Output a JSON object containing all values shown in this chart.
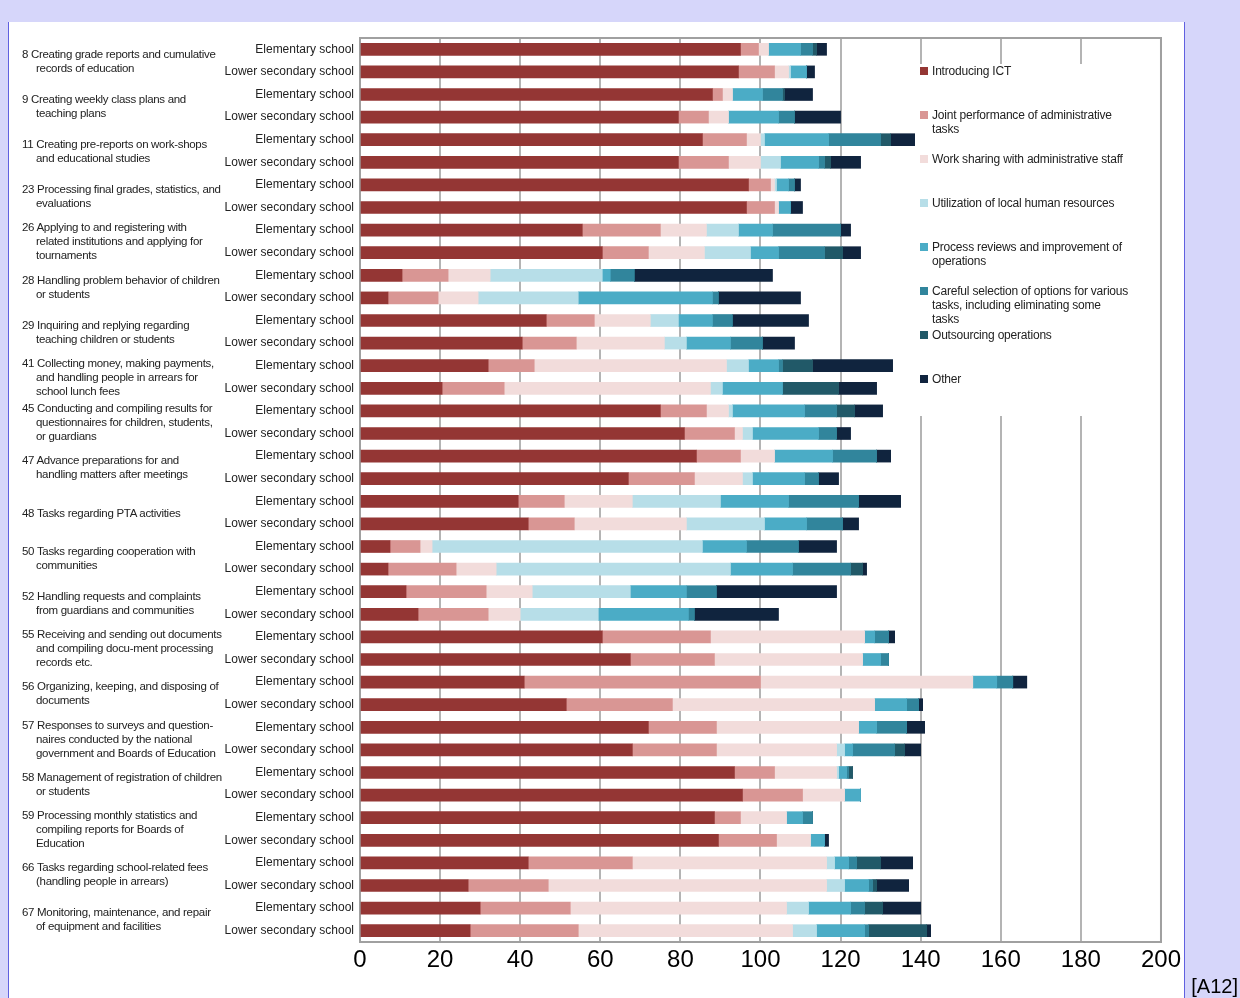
{
  "chart_data": {
    "type": "bar",
    "orientation": "horizontal",
    "stacked": true,
    "grid": "x",
    "legend": "right",
    "categories": [
      "Elementary school",
      "Lower secondary school",
      "Elementary school",
      "Lower secondary school",
      "Elementary school",
      "Lower secondary school",
      "Elementary school",
      "Lower secondary school",
      "Elementary school",
      "Lower secondary school",
      "Elementary school",
      "Lower secondary school",
      "Elementary school",
      "Lower secondary school",
      "Elementary school",
      "Lower secondary school",
      "Elementary school",
      "Lower secondary school",
      "Elementary school",
      "Lower secondary school",
      "Elementary school",
      "Lower secondary school",
      "Elementary school",
      "Lower secondary school",
      "Elementary school",
      "Lower secondary school",
      "Elementary school",
      "Lower secondary school",
      "Elementary school",
      "Lower secondary school",
      "Elementary school",
      "Lower secondary school",
      "Elementary school",
      "Lower secondary school",
      "Elementary school",
      "Lower secondary school",
      "Elementary school",
      "Lower secondary school",
      "Elementary school",
      "Lower secondary school"
    ],
    "xlim": [
      0,
      200
    ],
    "xticks": [
      0,
      20,
      40,
      60,
      80,
      100,
      120,
      140,
      160,
      180,
      200
    ],
    "series": [
      {
        "name": "Introducing ICT",
        "color": "#943634",
        "values": [
          95,
          94.5,
          88,
          79.5,
          85.5,
          79.5,
          97,
          96.5,
          55.5,
          60.5,
          10.5,
          7,
          46.5,
          40.5,
          32,
          20.5,
          75,
          81,
          84,
          67,
          39.5,
          42,
          7.5,
          7,
          11.5,
          14.5,
          60.5,
          67.5,
          41,
          51.5,
          72,
          68,
          93.5,
          95.5,
          88.5,
          89.5,
          42,
          27,
          30,
          27.5
        ]
      },
      {
        "name": "Joint performance of administrative tasks",
        "color": "#d99694",
        "values": [
          4.5,
          9,
          2.5,
          7.5,
          11,
          12.5,
          5.5,
          7,
          19.5,
          11.5,
          11.5,
          12.5,
          12,
          13.5,
          11.5,
          15.5,
          11.5,
          12.5,
          11,
          16.5,
          11.5,
          11.5,
          7.5,
          17,
          20,
          17.5,
          27,
          21,
          59,
          26.5,
          17,
          21,
          10,
          15,
          6.5,
          14.5,
          26,
          20,
          22.5,
          27
        ]
      },
      {
        "name": "Work sharing with administrative staff",
        "color": "#f2dcdb",
        "values": [
          2.5,
          3.5,
          2.5,
          5,
          3.5,
          8,
          1,
          1,
          11.5,
          14,
          10.5,
          10,
          14,
          22,
          48,
          51.5,
          5.5,
          2,
          8.5,
          12,
          17,
          28,
          3,
          10,
          11.5,
          8,
          38.5,
          37,
          53,
          50.5,
          35.5,
          30,
          15.5,
          10.5,
          11.5,
          8.5,
          48.5,
          69.5,
          54,
          53.5
        ]
      },
      {
        "name": "Utilization of local human resources",
        "color": "#b7dee8",
        "values": [
          0,
          0.5,
          0,
          0,
          1,
          5,
          0.5,
          0,
          8,
          11.5,
          28,
          25,
          7,
          5.5,
          5.5,
          3,
          1,
          2.5,
          0,
          2.5,
          22,
          19.5,
          67.5,
          58.5,
          24.5,
          19.5,
          0,
          0,
          0,
          0,
          0,
          2,
          0.5,
          0,
          0,
          0,
          2,
          4.5,
          5.5,
          6
        ]
      },
      {
        "name": "Process reviews and improvement of operations",
        "color": "#4bacc6",
        "values": [
          8,
          4,
          7.5,
          12.5,
          16,
          9.5,
          3,
          3,
          8.5,
          7,
          2,
          33.5,
          8.5,
          11,
          7.5,
          15,
          18,
          16.5,
          14.5,
          13,
          17,
          10.5,
          11,
          15.5,
          14,
          22.5,
          2.5,
          4.5,
          6,
          8,
          4.5,
          2,
          2,
          4,
          4,
          3.5,
          3.5,
          6,
          10.5,
          12
        ]
      },
      {
        "name": "Careful selection of options for various tasks, including eliminating some tasks",
        "color": "#31859c",
        "values": [
          3,
          0,
          5,
          4,
          13,
          1.5,
          1.5,
          0,
          17,
          11.5,
          6,
          1.5,
          5,
          8,
          1,
          0,
          8,
          4.5,
          11,
          3.5,
          17.5,
          9,
          13,
          14.5,
          7.5,
          1.5,
          3.5,
          2,
          4,
          3,
          7.5,
          10.5,
          0.5,
          0,
          2.5,
          0,
          2,
          1,
          3.5,
          1
        ]
      },
      {
        "name": "Outsourcing operations",
        "color": "#215968",
        "values": [
          1,
          0,
          0.5,
          0,
          2.5,
          1.5,
          0,
          0,
          0,
          4.5,
          0,
          0,
          0,
          0,
          7.5,
          14,
          4.5,
          0,
          0,
          0,
          0,
          0,
          0,
          3,
          0,
          0,
          0,
          0,
          0,
          0,
          0,
          2.5,
          1,
          0,
          0,
          0,
          6,
          1,
          4.5,
          14.5
        ]
      },
      {
        "name": "Other",
        "color": "#10243e",
        "values": [
          2.5,
          2,
          7,
          11.5,
          6,
          7.5,
          1.5,
          3,
          2.5,
          4.5,
          34.5,
          20.5,
          19,
          8,
          20,
          9.5,
          7,
          3.5,
          3.5,
          5,
          10.5,
          4,
          9.5,
          1,
          30,
          21,
          1.5,
          0,
          3.5,
          1,
          4.5,
          4,
          0,
          0,
          0,
          1,
          8,
          8,
          9.5,
          1
        ]
      }
    ],
    "annotations": [
      "8 Creating grade reports and cumulative records of education",
      "9 Creating weekly class plans and teaching plans",
      "11 Creating pre-reports on work-shops and educational studies",
      "23 Processing final grades, statistics, and evaluations",
      "26 Applying to and registering with related institutions and applying for tournaments",
      "28 Handling problem behavior of children or students",
      "29 Inquiring and replying regarding teaching children or students",
      "41 Collecting money, making payments, and handling people in arrears for school lunch fees",
      "45 Conducting and compiling results for questionnaires for children, students, or guardians",
      "47 Advance preparations for and handling matters after meetings",
      "48 Tasks regarding PTA activities",
      "50 Tasks regarding cooperation with communities",
      "52 Handling requests and complaints from guardians and communities",
      "55 Receiving and sending out documents and compiling docu-ment processing records etc.",
      "56 Organizing, keeping, and disposing of documents",
      "57 Responses to surveys and question-naires conducted by the national government and Boards of Education",
      "58 Management of registration of children or students",
      "59 Processing monthly statistics and compiling reports for Boards of Education",
      "66 Tasks regarding school-related fees (handling people in arrears)",
      "67 Monitoring, maintenance, and repair of equipment and facilities",
      "[A12]"
    ]
  }
}
